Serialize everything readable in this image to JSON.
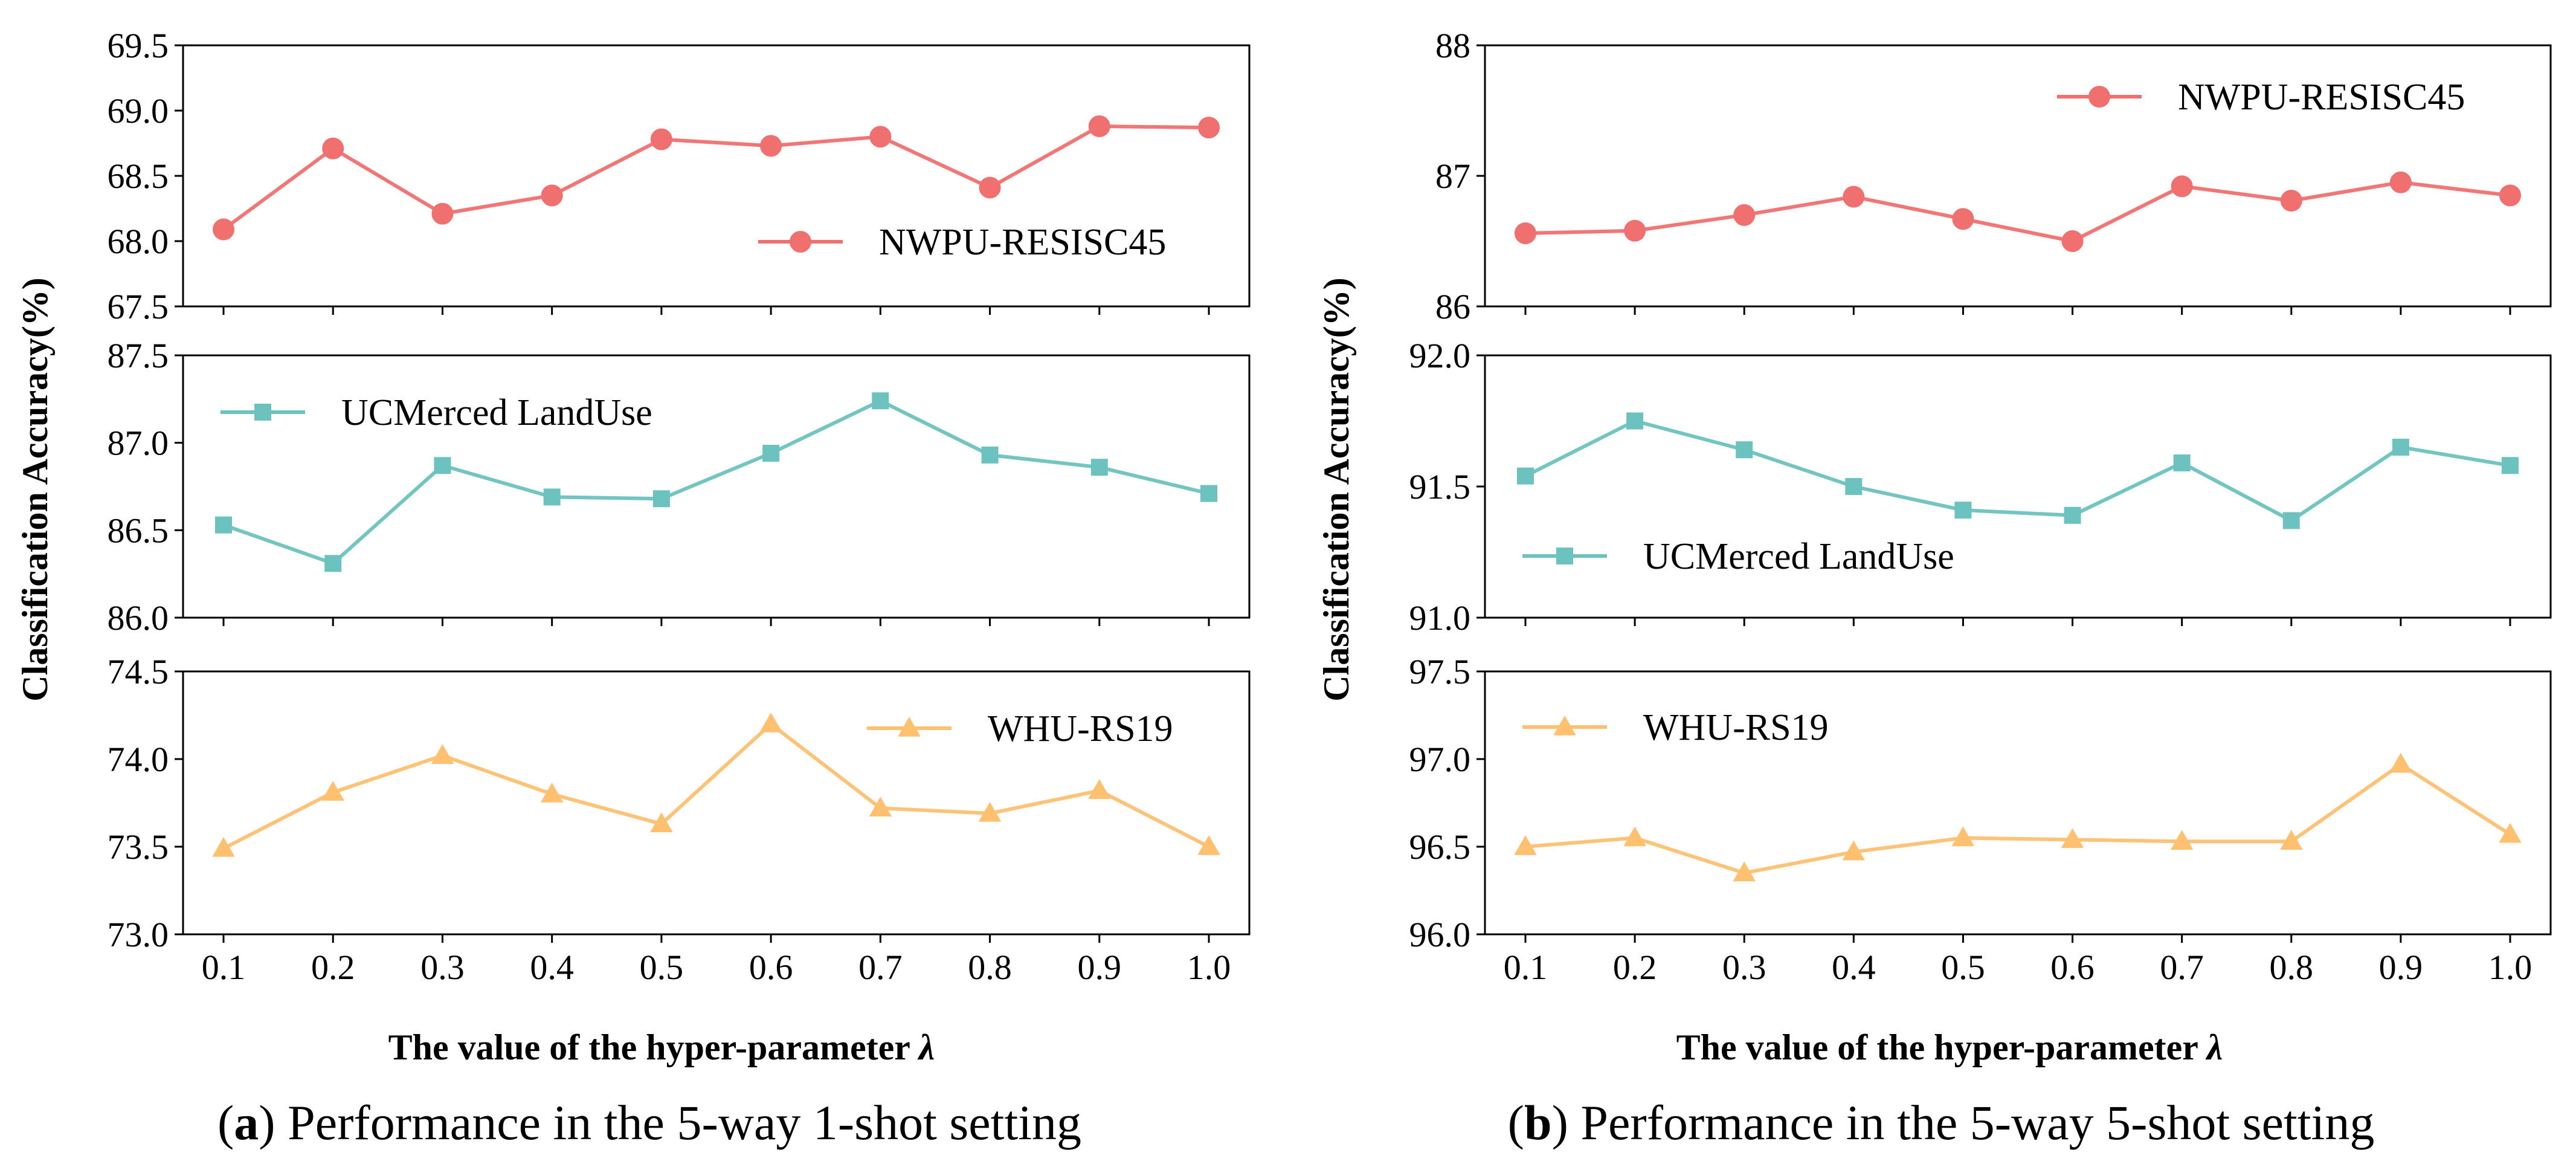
{
  "colors": {
    "NWPU-RESISC45": "#f07070",
    "UCMerced LandUse": "#6cc2bf",
    "WHU-RS19": "#ffc070"
  },
  "chart_data": [
    {
      "type": "line",
      "id": "a",
      "caption_letter": "a",
      "caption_text": "Performance in the 5-way 1-shot setting",
      "xlabel": "The value of the hyper-parameter",
      "xlabel_symbol": "λ",
      "ylabel": "Classification Accuracy(%)",
      "x": [
        "0.1",
        "0.2",
        "0.3",
        "0.4",
        "0.5",
        "0.6",
        "0.7",
        "0.8",
        "0.9",
        "1.0"
      ],
      "panels": [
        {
          "series": "NWPU-RESISC45",
          "marker": "circle",
          "ylim": [
            67.5,
            69.5
          ],
          "yticks": [
            "67.5",
            "68.0",
            "68.5",
            "69.0",
            "69.5"
          ],
          "legend_position": "lower-right",
          "values": [
            68.09,
            68.71,
            68.21,
            68.35,
            68.78,
            68.73,
            68.8,
            68.41,
            68.88,
            68.87
          ]
        },
        {
          "series": "UCMerced LandUse",
          "marker": "square",
          "ylim": [
            86.0,
            87.5
          ],
          "yticks": [
            "86.0",
            "86.5",
            "87.0",
            "87.5"
          ],
          "legend_position": "upper-left",
          "values": [
            86.53,
            86.31,
            86.87,
            86.69,
            86.68,
            86.94,
            87.24,
            86.93,
            86.86,
            86.71
          ]
        },
        {
          "series": "WHU-RS19",
          "marker": "triangle",
          "ylim": [
            73.0,
            74.5
          ],
          "yticks": [
            "73.0",
            "73.5",
            "74.0",
            "74.5"
          ],
          "legend_position": "upper-right",
          "values": [
            73.49,
            73.81,
            74.02,
            73.8,
            73.63,
            74.2,
            73.72,
            73.69,
            73.82,
            73.5
          ]
        }
      ]
    },
    {
      "type": "line",
      "id": "b",
      "caption_letter": "b",
      "caption_text": "Performance in the 5-way 5-shot setting",
      "xlabel": "The value of the hyper-parameter",
      "xlabel_symbol": "λ",
      "ylabel": "Classification Accuracy(%)",
      "x": [
        "0.1",
        "0.2",
        "0.3",
        "0.4",
        "0.5",
        "0.6",
        "0.7",
        "0.8",
        "0.9",
        "1.0"
      ],
      "panels": [
        {
          "series": "NWPU-RESISC45",
          "marker": "circle",
          "ylim": [
            86,
            88
          ],
          "yticks": [
            "86",
            "87",
            "88"
          ],
          "legend_position": "upper-right",
          "values": [
            86.56,
            86.58,
            86.7,
            86.84,
            86.67,
            86.5,
            86.92,
            86.81,
            86.95,
            86.85
          ]
        },
        {
          "series": "UCMerced LandUse",
          "marker": "square",
          "ylim": [
            91.0,
            92.0
          ],
          "yticks": [
            "91.0",
            "91.5",
            "92.0"
          ],
          "legend_position": "lower-left",
          "values": [
            91.54,
            91.75,
            91.64,
            91.5,
            91.41,
            91.39,
            91.59,
            91.37,
            91.65,
            91.58
          ]
        },
        {
          "series": "WHU-RS19",
          "marker": "triangle",
          "ylim": [
            96.0,
            97.5
          ],
          "yticks": [
            "96.0",
            "96.5",
            "97.0",
            "97.5"
          ],
          "legend_position": "upper-left",
          "values": [
            96.5,
            96.55,
            96.35,
            96.47,
            96.55,
            96.54,
            96.53,
            96.53,
            96.97,
            96.57
          ]
        }
      ]
    }
  ]
}
